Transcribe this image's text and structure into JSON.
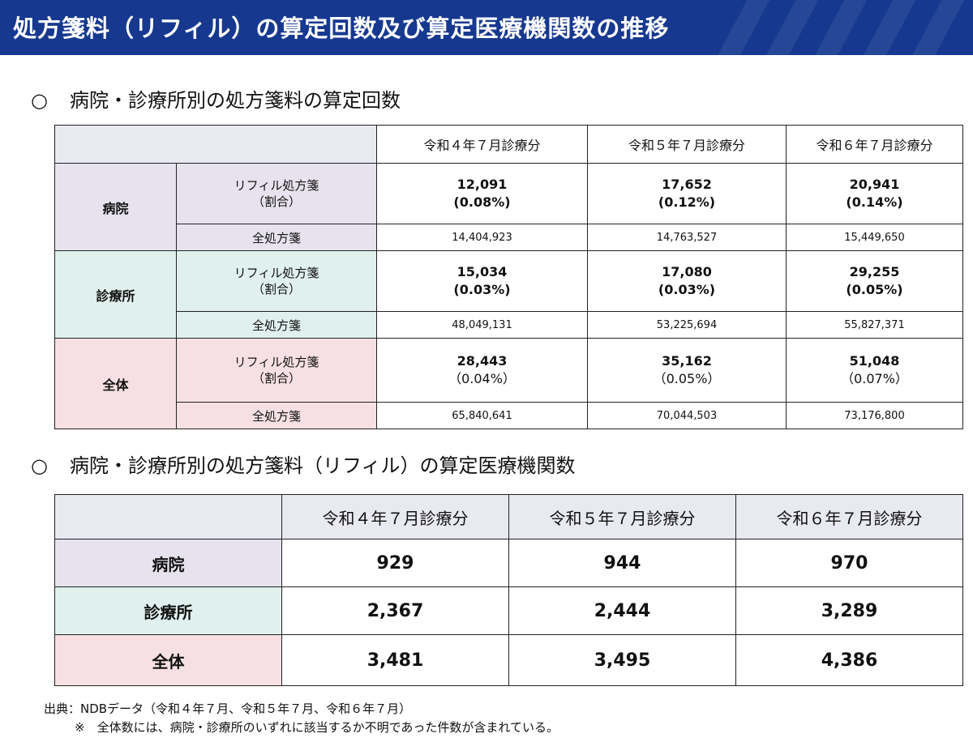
{
  "title": "処方箋料（リフィル）の算定回数及び算定医療機関数の推移",
  "section1": {
    "bullet": "○",
    "heading": "病院・診療所別の処方箋料の算定回数",
    "columns": [
      "令和４年７月診療分",
      "令和５年７月診療分",
      "令和６年７月診療分"
    ],
    "refill_label_line1": "リフィル処方箋",
    "refill_label_line2": "（割合）",
    "all_label": "全処方箋",
    "groups": [
      {
        "name": "病院",
        "refill": [
          {
            "count": "12,091",
            "ratio": "(0.08%)"
          },
          {
            "count": "17,652",
            "ratio": "(0.12%)"
          },
          {
            "count": "20,941",
            "ratio": "(0.14%)"
          }
        ],
        "all": [
          "14,404,923",
          "14,763,527",
          "15,449,650"
        ]
      },
      {
        "name": "診療所",
        "refill": [
          {
            "count": "15,034",
            "ratio": "(0.03%)"
          },
          {
            "count": "17,080",
            "ratio": "(0.03%)"
          },
          {
            "count": "29,255",
            "ratio": "(0.05%)"
          }
        ],
        "all": [
          "48,049,131",
          "53,225,694",
          "55,827,371"
        ]
      },
      {
        "name": "全体",
        "refill": [
          {
            "count": "28,443",
            "ratio": "（0.04%）"
          },
          {
            "count": "35,162",
            "ratio": "（0.05%）"
          },
          {
            "count": "51,048",
            "ratio": "（0.07%）"
          }
        ],
        "all": [
          "65,840,641",
          "70,044,503",
          "73,176,800"
        ]
      }
    ]
  },
  "section2": {
    "bullet": "○",
    "heading": "病院・診療所別の処方箋料（リフィル）の算定医療機関数",
    "columns": [
      "令和４年７月診療分",
      "令和５年７月診療分",
      "令和６年７月診療分"
    ],
    "rows": [
      {
        "name": "病院",
        "values": [
          "929",
          "944",
          "970"
        ]
      },
      {
        "name": "診療所",
        "values": [
          "2,367",
          "2,444",
          "3,289"
        ]
      },
      {
        "name": "全体",
        "values": [
          "3,481",
          "3,495",
          "4,386"
        ]
      }
    ]
  },
  "footer": {
    "source": "出典：NDBデータ（令和４年７月、令和５年７月、令和６年７月）",
    "note": "※　全体数には、病院・診療所のいずれに該当するか不明であった件数が含まれている。"
  },
  "colors": {
    "header_bg": "#16388f",
    "hospital_bg": "#e7e3ee",
    "clinic_bg": "#e0f0ed",
    "total_bg": "#f6e0e4",
    "column_header_bg": "#e8e9f1"
  }
}
